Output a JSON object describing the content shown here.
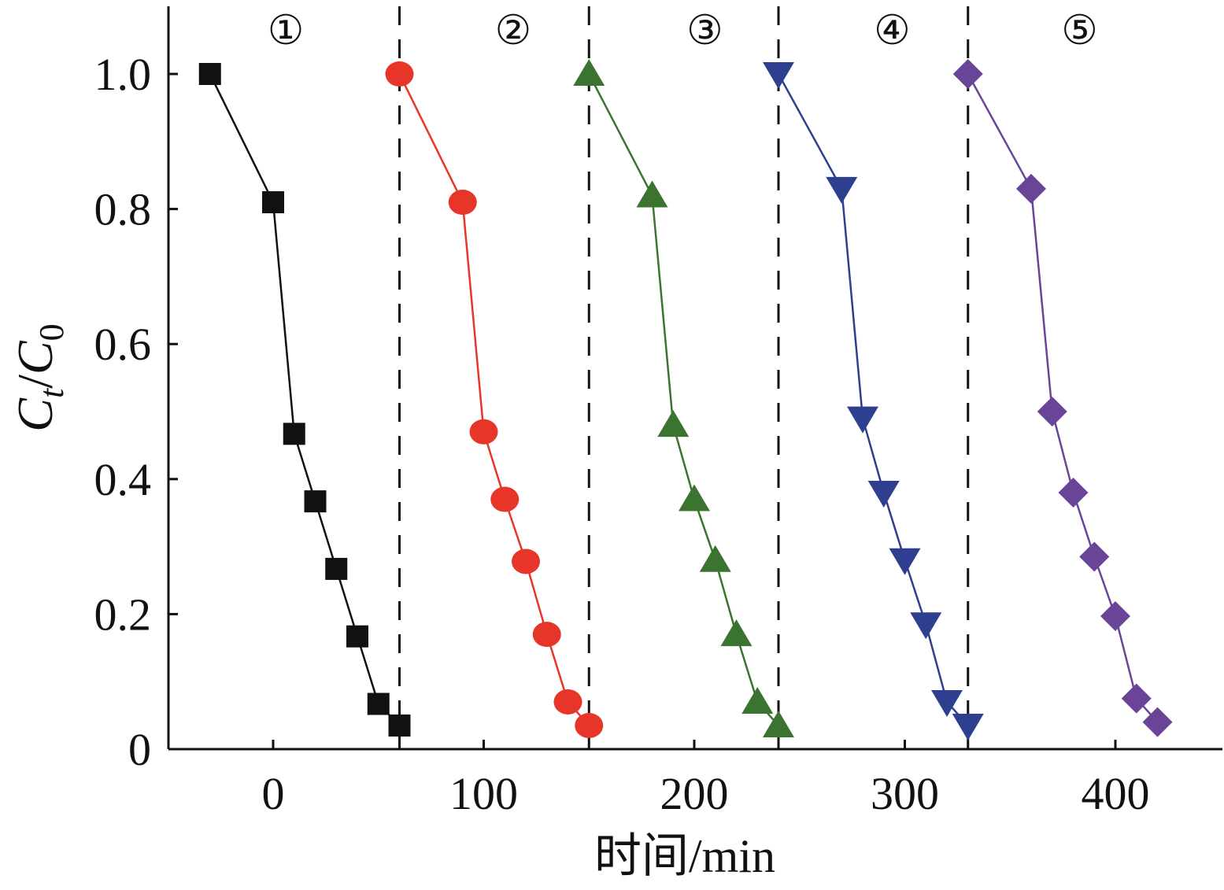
{
  "chart_data": {
    "type": "line",
    "xlabel": "时间/min",
    "ylabel": {
      "main": "C",
      "sub_t": "t",
      "slash": "/",
      "main2": "C",
      "sub_0": "0"
    },
    "xlim": [
      -50,
      450
    ],
    "ylim": [
      0,
      1.1
    ],
    "x_ticks": [
      0,
      100,
      200,
      300,
      400
    ],
    "x_tick_labels": [
      "0",
      "100",
      "200",
      "300",
      "400"
    ],
    "y_ticks": [
      0,
      0.2,
      0.4,
      0.6,
      0.8,
      1.0
    ],
    "y_tick_labels": [
      "0",
      "0.2",
      "0.4",
      "0.6",
      "0.8",
      "1.0"
    ],
    "cycle_dividers": [
      60,
      150,
      240,
      330
    ],
    "cycle_labels": [
      {
        "label": "①",
        "x": 6
      },
      {
        "label": "②",
        "x": 114
      },
      {
        "label": "③",
        "x": 205
      },
      {
        "label": "④",
        "x": 294
      },
      {
        "label": "⑤",
        "x": 383
      }
    ],
    "grid": false,
    "series": [
      {
        "marker": "square",
        "color": "#111111",
        "x": [
          -30,
          0,
          10,
          20,
          30,
          40,
          50,
          60
        ],
        "y": [
          1.0,
          0.81,
          0.467,
          0.367,
          0.267,
          0.167,
          0.067,
          0.035
        ]
      },
      {
        "marker": "circle",
        "color": "#e8352a",
        "x": [
          60,
          90,
          100,
          110,
          120,
          130,
          140,
          150
        ],
        "y": [
          1.0,
          0.81,
          0.47,
          0.37,
          0.278,
          0.17,
          0.07,
          0.035
        ]
      },
      {
        "marker": "triangle-up",
        "color": "#3a7430",
        "x": [
          150,
          180,
          190,
          200,
          210,
          220,
          230,
          240
        ],
        "y": [
          1.0,
          0.82,
          0.48,
          0.37,
          0.28,
          0.17,
          0.07,
          0.035
        ]
      },
      {
        "marker": "triangle-down",
        "color": "#2f3f8f",
        "x": [
          240,
          270,
          280,
          290,
          300,
          310,
          320,
          330
        ],
        "y": [
          1.0,
          0.83,
          0.49,
          0.38,
          0.28,
          0.185,
          0.07,
          0.035
        ]
      },
      {
        "marker": "diamond",
        "color": "#6a4597",
        "x": [
          330,
          360,
          370,
          380,
          390,
          400,
          410,
          420
        ],
        "y": [
          1.0,
          0.83,
          0.5,
          0.38,
          0.285,
          0.197,
          0.075,
          0.04
        ]
      }
    ]
  }
}
